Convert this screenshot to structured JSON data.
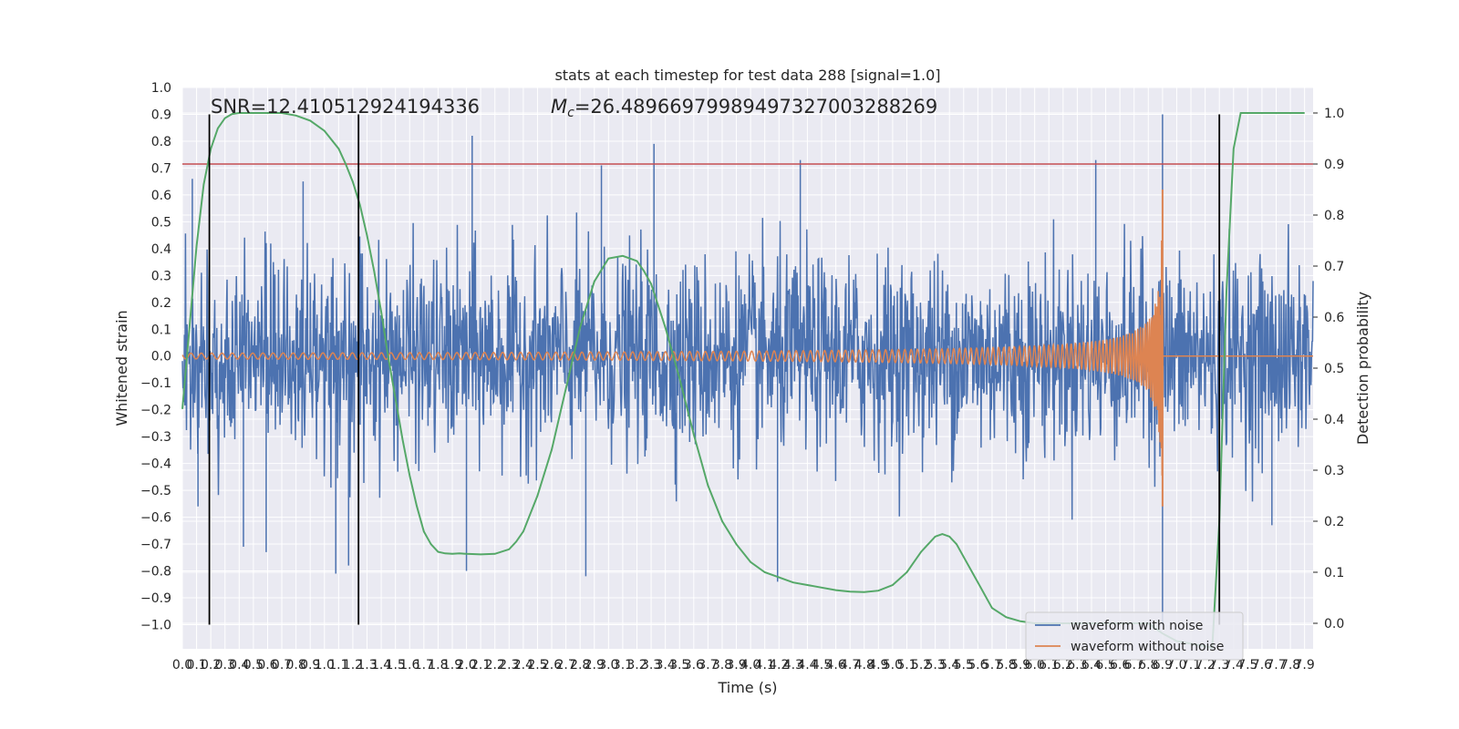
{
  "chart_data": {
    "type": "line",
    "title": "stats at each timestep for test data 288 [signal=1.0]",
    "xlabel": "Time (s)",
    "ylabel": "Whitened strain",
    "y2label": "Detection probability",
    "xlim": [
      0,
      7.96
    ],
    "ylim": [
      -1.09,
      1.0
    ],
    "y2lim": [
      -0.05,
      1.05
    ],
    "x_ticks": [
      0.0,
      0.1,
      0.2,
      0.3,
      0.4,
      0.5,
      0.6,
      0.7,
      0.8,
      0.9,
      1.0,
      1.1,
      1.2,
      1.3,
      1.4,
      1.5,
      1.6,
      1.7,
      1.8,
      1.9,
      2.0,
      2.1,
      2.2,
      2.3,
      2.4,
      2.5,
      2.6,
      2.7,
      2.8,
      2.9,
      3.0,
      3.1,
      3.2,
      3.3,
      3.4,
      3.5,
      3.6,
      3.7,
      3.8,
      3.9,
      4.0,
      4.1,
      4.2,
      4.3,
      4.4,
      4.5,
      4.6,
      4.7,
      4.8,
      4.9,
      5.0,
      5.1,
      5.2,
      5.3,
      5.4,
      5.5,
      5.6,
      5.7,
      5.8,
      5.9,
      6.0,
      6.1,
      6.2,
      6.3,
      6.4,
      6.5,
      6.6,
      6.7,
      6.8,
      6.9,
      7.0,
      7.1,
      7.2,
      7.3,
      7.4,
      7.5,
      7.6,
      7.7,
      7.8,
      7.9
    ],
    "x_tick_labels": [
      "0.0",
      "0.1",
      "0.2",
      "0.3",
      "0.4",
      "0.5",
      "0.6",
      "0.7",
      "0.8",
      "0.9",
      "1.0",
      "1.1",
      "1.2",
      "1.3",
      "1.4",
      "1.5",
      "1.6",
      "1.7",
      "1.8",
      "1.9",
      "2.0",
      "2.1",
      "2.2",
      "2.3",
      "2.4",
      "2.5",
      "2.6",
      "2.7",
      "2.8",
      "2.9",
      "3.0",
      "3.1",
      "3.2",
      "3.3",
      "3.4",
      "3.5",
      "3.6",
      "3.7",
      "3.8",
      "3.9",
      "4.0",
      "4.1",
      "4.2",
      "4.3",
      "4.4",
      "4.5",
      "4.6",
      "4.7",
      "4.8",
      "4.9",
      "5.0",
      "5.1",
      "5.2",
      "5.3",
      "5.4",
      "5.5",
      "5.6",
      "5.7",
      "5.8",
      "5.9",
      "6.0",
      "6.1",
      "6.2",
      "6.3",
      "6.4",
      "6.5",
      "6.6",
      "6.7",
      "6.8",
      "6.9",
      "7.0",
      "7.1",
      "7.2",
      "7.3",
      "7.4",
      "7.5",
      "7.6",
      "7.7",
      "7.8",
      "7.9"
    ],
    "y_ticks": [
      1.0,
      0.9,
      0.8,
      0.7,
      0.6,
      0.5,
      0.4,
      0.3,
      0.2,
      0.1,
      0.0,
      -0.1,
      -0.2,
      -0.3,
      -0.4,
      -0.5,
      -0.6,
      -0.7,
      -0.8,
      -0.9,
      -1.0
    ],
    "y_tick_labels": [
      "1.0",
      "0.9",
      "0.8",
      "0.7",
      "0.6",
      "0.5",
      "0.4",
      "0.3",
      "0.2",
      "0.1",
      "0.0",
      "−0.1",
      "−0.2",
      "−0.3",
      "−0.4",
      "−0.5",
      "−0.6",
      "−0.7",
      "−0.8",
      "−0.9",
      "−1.0"
    ],
    "y2_ticks": [
      1.0,
      0.9,
      0.8,
      0.7,
      0.6,
      0.5,
      0.4,
      0.3,
      0.2,
      0.1,
      0.0
    ],
    "y2_tick_labels": [
      "1.0",
      "0.9",
      "0.8",
      "0.7",
      "0.6",
      "0.5",
      "0.4",
      "0.3",
      "0.2",
      "0.1",
      "0.0"
    ],
    "grid": true,
    "legend": "lower-right",
    "annotations": {
      "snr": "SNR=12.410512924194336",
      "mc_symbol": "M",
      "mc_sub": "c",
      "mc_value": "=26.48966979989497327003288269"
    },
    "series": [
      {
        "name": "waveform with noise",
        "color": "#4c72b0",
        "axis": "left",
        "description": "whitened noisy strain, approx. Gaussian band +/-0.35 with spikes to +/-0.8, peak ~0.9 at t=6.9",
        "amplitude": 0.18,
        "notable_peaks": [
          {
            "x": 0.07,
            "y": 0.66
          },
          {
            "x": 0.11,
            "y": -0.56
          },
          {
            "x": 0.43,
            "y": -0.71
          },
          {
            "x": 0.59,
            "y": -0.73
          },
          {
            "x": 0.85,
            "y": 0.65
          },
          {
            "x": 1.08,
            "y": -0.81
          },
          {
            "x": 1.17,
            "y": -0.78
          },
          {
            "x": 2.04,
            "y": 0.82
          },
          {
            "x": 2.0,
            "y": -0.8
          },
          {
            "x": 2.84,
            "y": -0.82
          },
          {
            "x": 2.95,
            "y": 0.71
          },
          {
            "x": 3.32,
            "y": 0.79
          },
          {
            "x": 4.35,
            "y": 0.73
          },
          {
            "x": 4.19,
            "y": -0.84
          },
          {
            "x": 6.43,
            "y": 0.73
          },
          {
            "x": 6.9,
            "y": 0.9
          },
          {
            "x": 6.9,
            "y": -1.0
          },
          {
            "x": 7.67,
            "y": -0.63
          }
        ]
      },
      {
        "name": "waveform without noise",
        "color": "#dd8452",
        "axis": "left",
        "description": "chirp signal, amplitude grows from ~0 to peak ~0.62 at merger t=6.9, then zero",
        "merger_time": 6.9,
        "peak_amplitude": 0.62,
        "min_value": -0.56
      },
      {
        "name": "detection probability",
        "color": "#55a868",
        "axis": "right",
        "x": [
          0.0,
          0.05,
          0.1,
          0.15,
          0.2,
          0.25,
          0.3,
          0.35,
          0.4,
          0.5,
          0.6,
          0.7,
          0.8,
          0.9,
          1.0,
          1.1,
          1.15,
          1.2,
          1.25,
          1.3,
          1.35,
          1.4,
          1.45,
          1.5,
          1.55,
          1.6,
          1.65,
          1.7,
          1.75,
          1.8,
          1.85,
          1.9,
          1.95,
          2.0,
          2.1,
          2.2,
          2.3,
          2.35,
          2.4,
          2.5,
          2.6,
          2.7,
          2.8,
          2.9,
          3.0,
          3.1,
          3.2,
          3.25,
          3.3,
          3.4,
          3.5,
          3.6,
          3.7,
          3.8,
          3.9,
          4.0,
          4.1,
          4.2,
          4.3,
          4.4,
          4.5,
          4.6,
          4.7,
          4.8,
          4.9,
          5.0,
          5.1,
          5.2,
          5.3,
          5.35,
          5.4,
          5.45,
          5.5,
          5.6,
          5.7,
          5.8,
          5.9,
          6.0,
          6.2,
          6.4,
          6.6,
          6.8,
          6.9,
          7.0,
          7.1,
          7.2,
          7.25,
          7.3,
          7.35,
          7.4,
          7.45,
          7.5,
          7.6,
          7.8,
          7.9
        ],
        "y": [
          0.42,
          0.58,
          0.74,
          0.86,
          0.93,
          0.97,
          0.99,
          0.998,
          1.0,
          1.0,
          1.0,
          1.0,
          0.995,
          0.985,
          0.965,
          0.93,
          0.9,
          0.865,
          0.82,
          0.76,
          0.69,
          0.61,
          0.52,
          0.44,
          0.36,
          0.29,
          0.23,
          0.18,
          0.155,
          0.14,
          0.137,
          0.136,
          0.137,
          0.136,
          0.135,
          0.136,
          0.145,
          0.16,
          0.18,
          0.25,
          0.34,
          0.46,
          0.58,
          0.67,
          0.715,
          0.72,
          0.71,
          0.69,
          0.665,
          0.58,
          0.48,
          0.37,
          0.27,
          0.2,
          0.155,
          0.12,
          0.1,
          0.09,
          0.08,
          0.075,
          0.07,
          0.065,
          0.062,
          0.061,
          0.064,
          0.075,
          0.1,
          0.14,
          0.17,
          0.175,
          0.17,
          0.155,
          0.13,
          0.08,
          0.03,
          0.012,
          0.004,
          0.0,
          0.0,
          0.0,
          0.0,
          0.0,
          -0.02,
          -0.035,
          -0.04,
          -0.045,
          -0.048,
          0.2,
          0.65,
          0.93,
          1.0,
          1.0,
          1.0,
          1.0,
          1.0
        ]
      }
    ],
    "horizontal_lines": [
      {
        "y": 0.9,
        "axis": "right",
        "color": "#c44e52"
      }
    ],
    "vertical_lines": [
      {
        "x": 0.19,
        "ymin": -1.0,
        "ymax": 0.9,
        "color": "#000000"
      },
      {
        "x": 1.24,
        "ymin": -1.0,
        "ymax": 0.9,
        "color": "#000000"
      },
      {
        "x": 7.3,
        "ymin": -1.0,
        "ymax": 0.9,
        "color": "#000000"
      }
    ]
  }
}
